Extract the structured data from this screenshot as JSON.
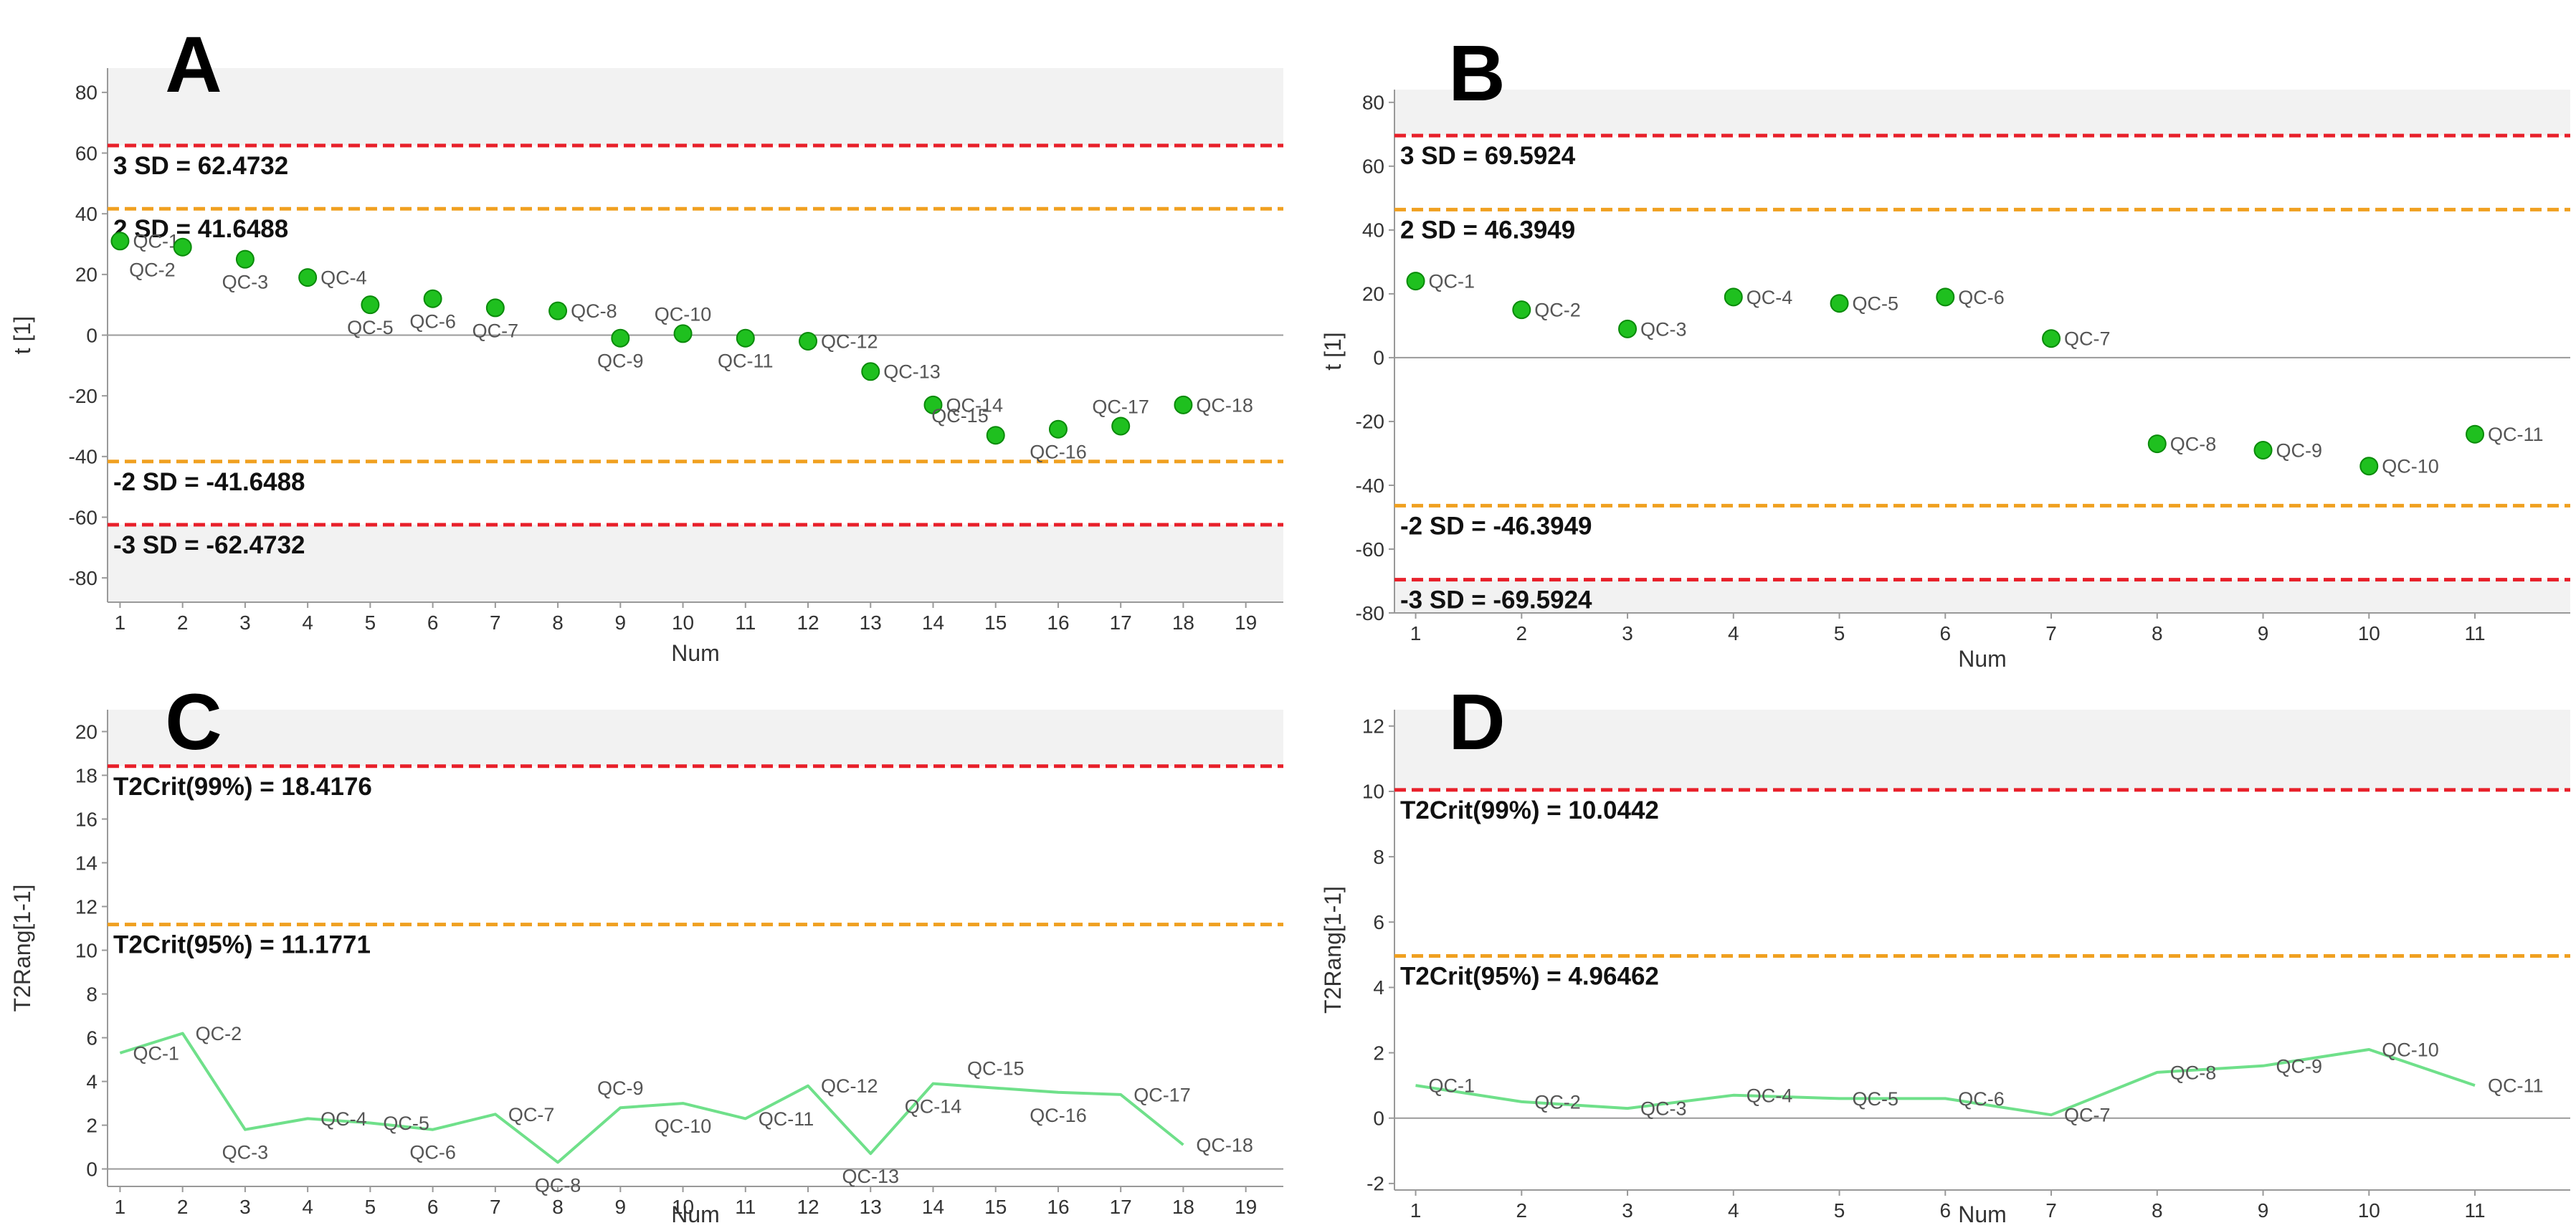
{
  "colors": {
    "band": "#f2f2f2",
    "red": "#e8202a",
    "orange": "#f0a020",
    "green": "#1fc01f",
    "green_dark": "#0a8a0a",
    "line": "#6fe08a",
    "axis": "#999999"
  },
  "chart_data": [
    {
      "id": "A",
      "letter": "A",
      "type": "scatter",
      "xlabel": "Num",
      "ylabel": "t [1]",
      "xlim": [
        0.8,
        19.6
      ],
      "ylim": [
        -88,
        88
      ],
      "xticks": [
        1,
        2,
        3,
        4,
        5,
        6,
        7,
        8,
        9,
        10,
        11,
        12,
        13,
        14,
        15,
        16,
        17,
        18,
        19
      ],
      "yticks": [
        -80,
        -60,
        -40,
        -20,
        0,
        20,
        40,
        60,
        80
      ],
      "zero_line": true,
      "band_outside": 62.4732,
      "ref_lines": [
        {
          "value": 62.4732,
          "color": "red",
          "label": "3 SD = 62.4732"
        },
        {
          "value": 41.6488,
          "color": "orange",
          "label": "2 SD = 41.6488"
        },
        {
          "value": -41.6488,
          "color": "orange",
          "label": "-2 SD = -41.6488"
        },
        {
          "value": -62.4732,
          "color": "red",
          "label": "-3 SD = -62.4732"
        }
      ],
      "points": [
        {
          "x": 1,
          "y": 31,
          "label": "QC-1",
          "pos": "right"
        },
        {
          "x": 2,
          "y": 29,
          "label": "QC-2",
          "pos": "below-left"
        },
        {
          "x": 3,
          "y": 25,
          "label": "QC-3",
          "pos": "below"
        },
        {
          "x": 4,
          "y": 19,
          "label": "QC-4",
          "pos": "right"
        },
        {
          "x": 5,
          "y": 10,
          "label": "QC-5",
          "pos": "below"
        },
        {
          "x": 6,
          "y": 12,
          "label": "QC-6",
          "pos": "below"
        },
        {
          "x": 7,
          "y": 9,
          "label": "QC-7",
          "pos": "below"
        },
        {
          "x": 8,
          "y": 8,
          "label": "QC-8",
          "pos": "right"
        },
        {
          "x": 9,
          "y": -1,
          "label": "QC-9",
          "pos": "below"
        },
        {
          "x": 10,
          "y": 0.5,
          "label": "QC-10",
          "pos": "above"
        },
        {
          "x": 11,
          "y": -1,
          "label": "QC-11",
          "pos": "below"
        },
        {
          "x": 12,
          "y": -2,
          "label": "QC-12",
          "pos": "right"
        },
        {
          "x": 13,
          "y": -12,
          "label": "QC-13",
          "pos": "right"
        },
        {
          "x": 14,
          "y": -23,
          "label": "QC-14",
          "pos": "right"
        },
        {
          "x": 15,
          "y": -33,
          "label": "QC-15",
          "pos": "above-left"
        },
        {
          "x": 16,
          "y": -31,
          "label": "QC-16",
          "pos": "below"
        },
        {
          "x": 17,
          "y": -30,
          "label": "QC-17",
          "pos": "above"
        },
        {
          "x": 18,
          "y": -23,
          "label": "QC-18",
          "pos": "right"
        }
      ]
    },
    {
      "id": "B",
      "letter": "B",
      "type": "scatter",
      "xlabel": "Num",
      "ylabel": "t [1]",
      "xlim": [
        0.8,
        11.9
      ],
      "ylim": [
        -80,
        84
      ],
      "xticks": [
        1,
        2,
        3,
        4,
        5,
        6,
        7,
        8,
        9,
        10,
        11
      ],
      "yticks": [
        -80,
        -60,
        -40,
        -20,
        0,
        20,
        40,
        60,
        80
      ],
      "zero_line": true,
      "band_outside": 69.5924,
      "ref_lines": [
        {
          "value": 69.5924,
          "color": "red",
          "label": "3 SD = 69.5924"
        },
        {
          "value": 46.3949,
          "color": "orange",
          "label": "2 SD = 46.3949"
        },
        {
          "value": -46.3949,
          "color": "orange",
          "label": "-2 SD = -46.3949"
        },
        {
          "value": -69.5924,
          "color": "red",
          "label": "-3 SD = -69.5924"
        }
      ],
      "points": [
        {
          "x": 1,
          "y": 24,
          "label": "QC-1",
          "pos": "right"
        },
        {
          "x": 2,
          "y": 15,
          "label": "QC-2",
          "pos": "right"
        },
        {
          "x": 3,
          "y": 9,
          "label": "QC-3",
          "pos": "right"
        },
        {
          "x": 4,
          "y": 19,
          "label": "QC-4",
          "pos": "right"
        },
        {
          "x": 5,
          "y": 17,
          "label": "QC-5",
          "pos": "right"
        },
        {
          "x": 6,
          "y": 19,
          "label": "QC-6",
          "pos": "right"
        },
        {
          "x": 7,
          "y": 6,
          "label": "QC-7",
          "pos": "right"
        },
        {
          "x": 8,
          "y": -27,
          "label": "QC-8",
          "pos": "right"
        },
        {
          "x": 9,
          "y": -29,
          "label": "QC-9",
          "pos": "right"
        },
        {
          "x": 10,
          "y": -34,
          "label": "QC-10",
          "pos": "right"
        },
        {
          "x": 11,
          "y": -24,
          "label": "QC-11",
          "pos": "right"
        }
      ]
    },
    {
      "id": "C",
      "letter": "C",
      "type": "line",
      "xlabel": "Num",
      "ylabel": "T2Rang[1-1]",
      "xlim": [
        0.8,
        19.6
      ],
      "ylim": [
        -0.8,
        21
      ],
      "xticks": [
        1,
        2,
        3,
        4,
        5,
        6,
        7,
        8,
        9,
        10,
        11,
        12,
        13,
        14,
        15,
        16,
        17,
        18,
        19
      ],
      "yticks": [
        0,
        2,
        4,
        6,
        8,
        10,
        12,
        14,
        16,
        18,
        20
      ],
      "zero_line": true,
      "band_outside": 18.4176,
      "ref_lines": [
        {
          "value": 18.4176,
          "color": "red",
          "label": "T2Crit(99%) = 18.4176"
        },
        {
          "value": 11.1771,
          "color": "orange",
          "label": "T2Crit(95%) = 11.1771"
        }
      ],
      "points": [
        {
          "x": 1,
          "y": 5.3,
          "label": "QC-1",
          "pos": "right"
        },
        {
          "x": 2,
          "y": 6.2,
          "label": "QC-2",
          "pos": "right"
        },
        {
          "x": 3,
          "y": 1.8,
          "label": "QC-3",
          "pos": "below"
        },
        {
          "x": 4,
          "y": 2.3,
          "label": "QC-4",
          "pos": "right"
        },
        {
          "x": 5,
          "y": 2.1,
          "label": "QC-5",
          "pos": "right"
        },
        {
          "x": 6,
          "y": 1.8,
          "label": "QC-6",
          "pos": "below"
        },
        {
          "x": 7,
          "y": 2.5,
          "label": "QC-7",
          "pos": "right"
        },
        {
          "x": 8,
          "y": 0.3,
          "label": "QC-8",
          "pos": "below"
        },
        {
          "x": 9,
          "y": 2.8,
          "label": "QC-9",
          "pos": "above"
        },
        {
          "x": 10,
          "y": 3.0,
          "label": "QC-10",
          "pos": "below"
        },
        {
          "x": 11,
          "y": 2.3,
          "label": "QC-11",
          "pos": "right"
        },
        {
          "x": 12,
          "y": 3.8,
          "label": "QC-12",
          "pos": "right"
        },
        {
          "x": 13,
          "y": 0.7,
          "label": "QC-13",
          "pos": "below"
        },
        {
          "x": 14,
          "y": 3.9,
          "label": "QC-14",
          "pos": "below"
        },
        {
          "x": 15,
          "y": 3.7,
          "label": "QC-15",
          "pos": "above"
        },
        {
          "x": 16,
          "y": 3.5,
          "label": "QC-16",
          "pos": "below"
        },
        {
          "x": 17,
          "y": 3.4,
          "label": "QC-17",
          "pos": "right"
        },
        {
          "x": 18,
          "y": 1.1,
          "label": "QC-18",
          "pos": "right"
        }
      ]
    },
    {
      "id": "D",
      "letter": "D",
      "type": "line",
      "xlabel": "Num",
      "ylabel": "T2Rang[1-1]",
      "xlim": [
        0.8,
        11.9
      ],
      "ylim": [
        -2.2,
        12.5
      ],
      "xticks": [
        1,
        2,
        3,
        4,
        5,
        6,
        7,
        8,
        9,
        10,
        11
      ],
      "yticks": [
        -2,
        0,
        2,
        4,
        6,
        8,
        10,
        12
      ],
      "zero_line": true,
      "band_outside": 10.0442,
      "ref_lines": [
        {
          "value": 10.0442,
          "color": "red",
          "label": "T2Crit(99%) = 10.0442"
        },
        {
          "value": 4.96462,
          "color": "orange",
          "label": "T2Crit(95%) = 4.96462"
        }
      ],
      "points": [
        {
          "x": 1,
          "y": 1.0,
          "label": "QC-1",
          "pos": "right"
        },
        {
          "x": 2,
          "y": 0.5,
          "label": "QC-2",
          "pos": "right"
        },
        {
          "x": 3,
          "y": 0.3,
          "label": "QC-3",
          "pos": "right"
        },
        {
          "x": 4,
          "y": 0.7,
          "label": "QC-4",
          "pos": "right"
        },
        {
          "x": 5,
          "y": 0.6,
          "label": "QC-5",
          "pos": "right"
        },
        {
          "x": 6,
          "y": 0.6,
          "label": "QC-6",
          "pos": "right"
        },
        {
          "x": 7,
          "y": 0.1,
          "label": "QC-7",
          "pos": "right"
        },
        {
          "x": 8,
          "y": 1.4,
          "label": "QC-8",
          "pos": "right"
        },
        {
          "x": 9,
          "y": 1.6,
          "label": "QC-9",
          "pos": "right"
        },
        {
          "x": 10,
          "y": 2.1,
          "label": "QC-10",
          "pos": "right"
        },
        {
          "x": 11,
          "y": 1.0,
          "label": "QC-11",
          "pos": "right"
        }
      ]
    }
  ]
}
